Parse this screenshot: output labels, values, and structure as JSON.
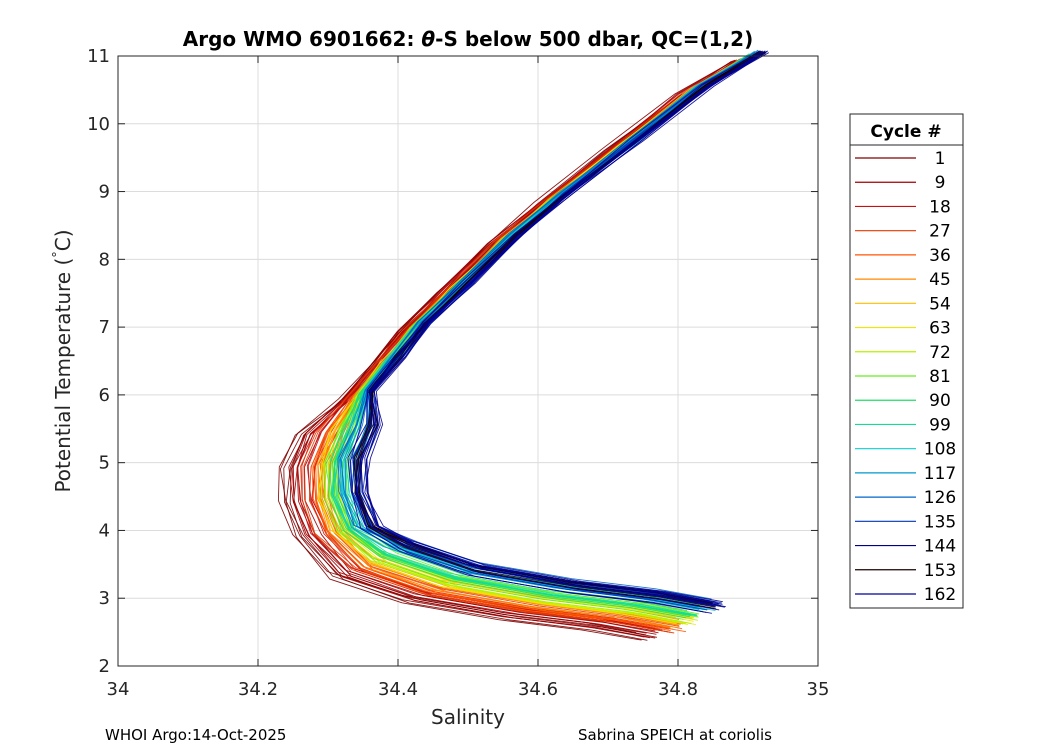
{
  "chart_data": {
    "type": "line",
    "title": "Argo WMO 6901662: θ-S below 500 dbar,  QC=(1,2)",
    "title_parts": {
      "prefix": "Argo WMO 6901662: ",
      "theta": "θ",
      "suffix": "-S below 500 dbar,  QC=(1,2)"
    },
    "xlabel": "Salinity",
    "ylabel_parts": {
      "prefix": "Potential Temperature (",
      "degree": "°",
      "suffix": "C)"
    },
    "xlim": [
      34,
      35
    ],
    "ylim": [
      2,
      11
    ],
    "xticks": [
      34,
      34.2,
      34.4,
      34.6,
      34.8,
      35
    ],
    "xtick_labels": [
      "34",
      "34.2",
      "34.4",
      "34.6",
      "34.8",
      "35"
    ],
    "yticks": [
      2,
      3,
      4,
      5,
      6,
      7,
      8,
      9,
      10,
      11
    ],
    "ytick_labels": [
      "2",
      "3",
      "4",
      "5",
      "6",
      "7",
      "8",
      "9",
      "10",
      "11"
    ],
    "grid": true,
    "legend": {
      "title": "Cycle #",
      "placement": "right-outside",
      "entries": [
        {
          "label": "1",
          "color": "#800000"
        },
        {
          "label": "9",
          "color": "#a00000"
        },
        {
          "label": "18",
          "color": "#c81010"
        },
        {
          "label": "27",
          "color": "#e63a00"
        },
        {
          "label": "36",
          "color": "#ff5500"
        },
        {
          "label": "45",
          "color": "#ff8800"
        },
        {
          "label": "54",
          "color": "#ffbb00"
        },
        {
          "label": "63",
          "color": "#f2e600"
        },
        {
          "label": "72",
          "color": "#b8f000"
        },
        {
          "label": "81",
          "color": "#66ee22"
        },
        {
          "label": "90",
          "color": "#22dd66"
        },
        {
          "label": "99",
          "color": "#11dd99"
        },
        {
          "label": "108",
          "color": "#11cccc"
        },
        {
          "label": "117",
          "color": "#0099cc"
        },
        {
          "label": "126",
          "color": "#0066cc"
        },
        {
          "label": "135",
          "color": "#0033bb"
        },
        {
          "label": "144",
          "color": "#00008b"
        },
        {
          "label": "153",
          "color": "#1a0000"
        },
        {
          "label": "162",
          "color": "#000099"
        }
      ]
    },
    "series_profiles": [
      {
        "color": "#800000",
        "ds": -0.045,
        "dt": -0.25
      },
      {
        "color": "#a00000",
        "ds": -0.035,
        "dt": -0.22
      },
      {
        "color": "#c81010",
        "ds": -0.02,
        "dt": -0.18
      },
      {
        "color": "#e63a00",
        "ds": -0.012,
        "dt": -0.14
      },
      {
        "color": "#ff5500",
        "ds": -0.006,
        "dt": -0.12
      },
      {
        "color": "#ff8800",
        "ds": 0.0,
        "dt": -0.08
      },
      {
        "color": "#ffbb00",
        "ds": 0.005,
        "dt": -0.05
      },
      {
        "color": "#f2e600",
        "ds": 0.01,
        "dt": -0.03
      },
      {
        "color": "#b8f000",
        "ds": 0.015,
        "dt": 0.0
      },
      {
        "color": "#66ee22",
        "ds": 0.02,
        "dt": 0.03
      },
      {
        "color": "#22dd66",
        "ds": 0.025,
        "dt": 0.06
      },
      {
        "color": "#11dd99",
        "ds": 0.03,
        "dt": 0.1
      },
      {
        "color": "#11cccc",
        "ds": 0.035,
        "dt": 0.16
      },
      {
        "color": "#0099cc",
        "ds": 0.04,
        "dt": 0.2
      },
      {
        "color": "#0066cc",
        "ds": 0.045,
        "dt": 0.22
      },
      {
        "color": "#0033bb",
        "ds": 0.05,
        "dt": 0.2
      },
      {
        "color": "#00008b",
        "ds": 0.052,
        "dt": 0.18
      },
      {
        "color": "#1a0000",
        "ds": 0.05,
        "dt": 0.16
      },
      {
        "color": "#000099",
        "ds": 0.055,
        "dt": 0.14
      }
    ],
    "base_profile": {
      "salinity": [
        34.9,
        34.82,
        34.72,
        34.62,
        34.55,
        34.48,
        34.42,
        34.38,
        34.34,
        34.31,
        34.29,
        34.29,
        34.31,
        34.36,
        34.46,
        34.6,
        34.72,
        34.8
      ],
      "theta": [
        11.0,
        10.5,
        9.7,
        8.9,
        8.3,
        7.6,
        7.0,
        6.5,
        6.0,
        5.5,
        5.0,
        4.5,
        4.0,
        3.6,
        3.25,
        3.0,
        2.85,
        2.7
      ]
    }
  },
  "footer": {
    "left": "WHOI Argo:14-Oct-2025",
    "right": "Sabrina SPEICH at coriolis"
  }
}
